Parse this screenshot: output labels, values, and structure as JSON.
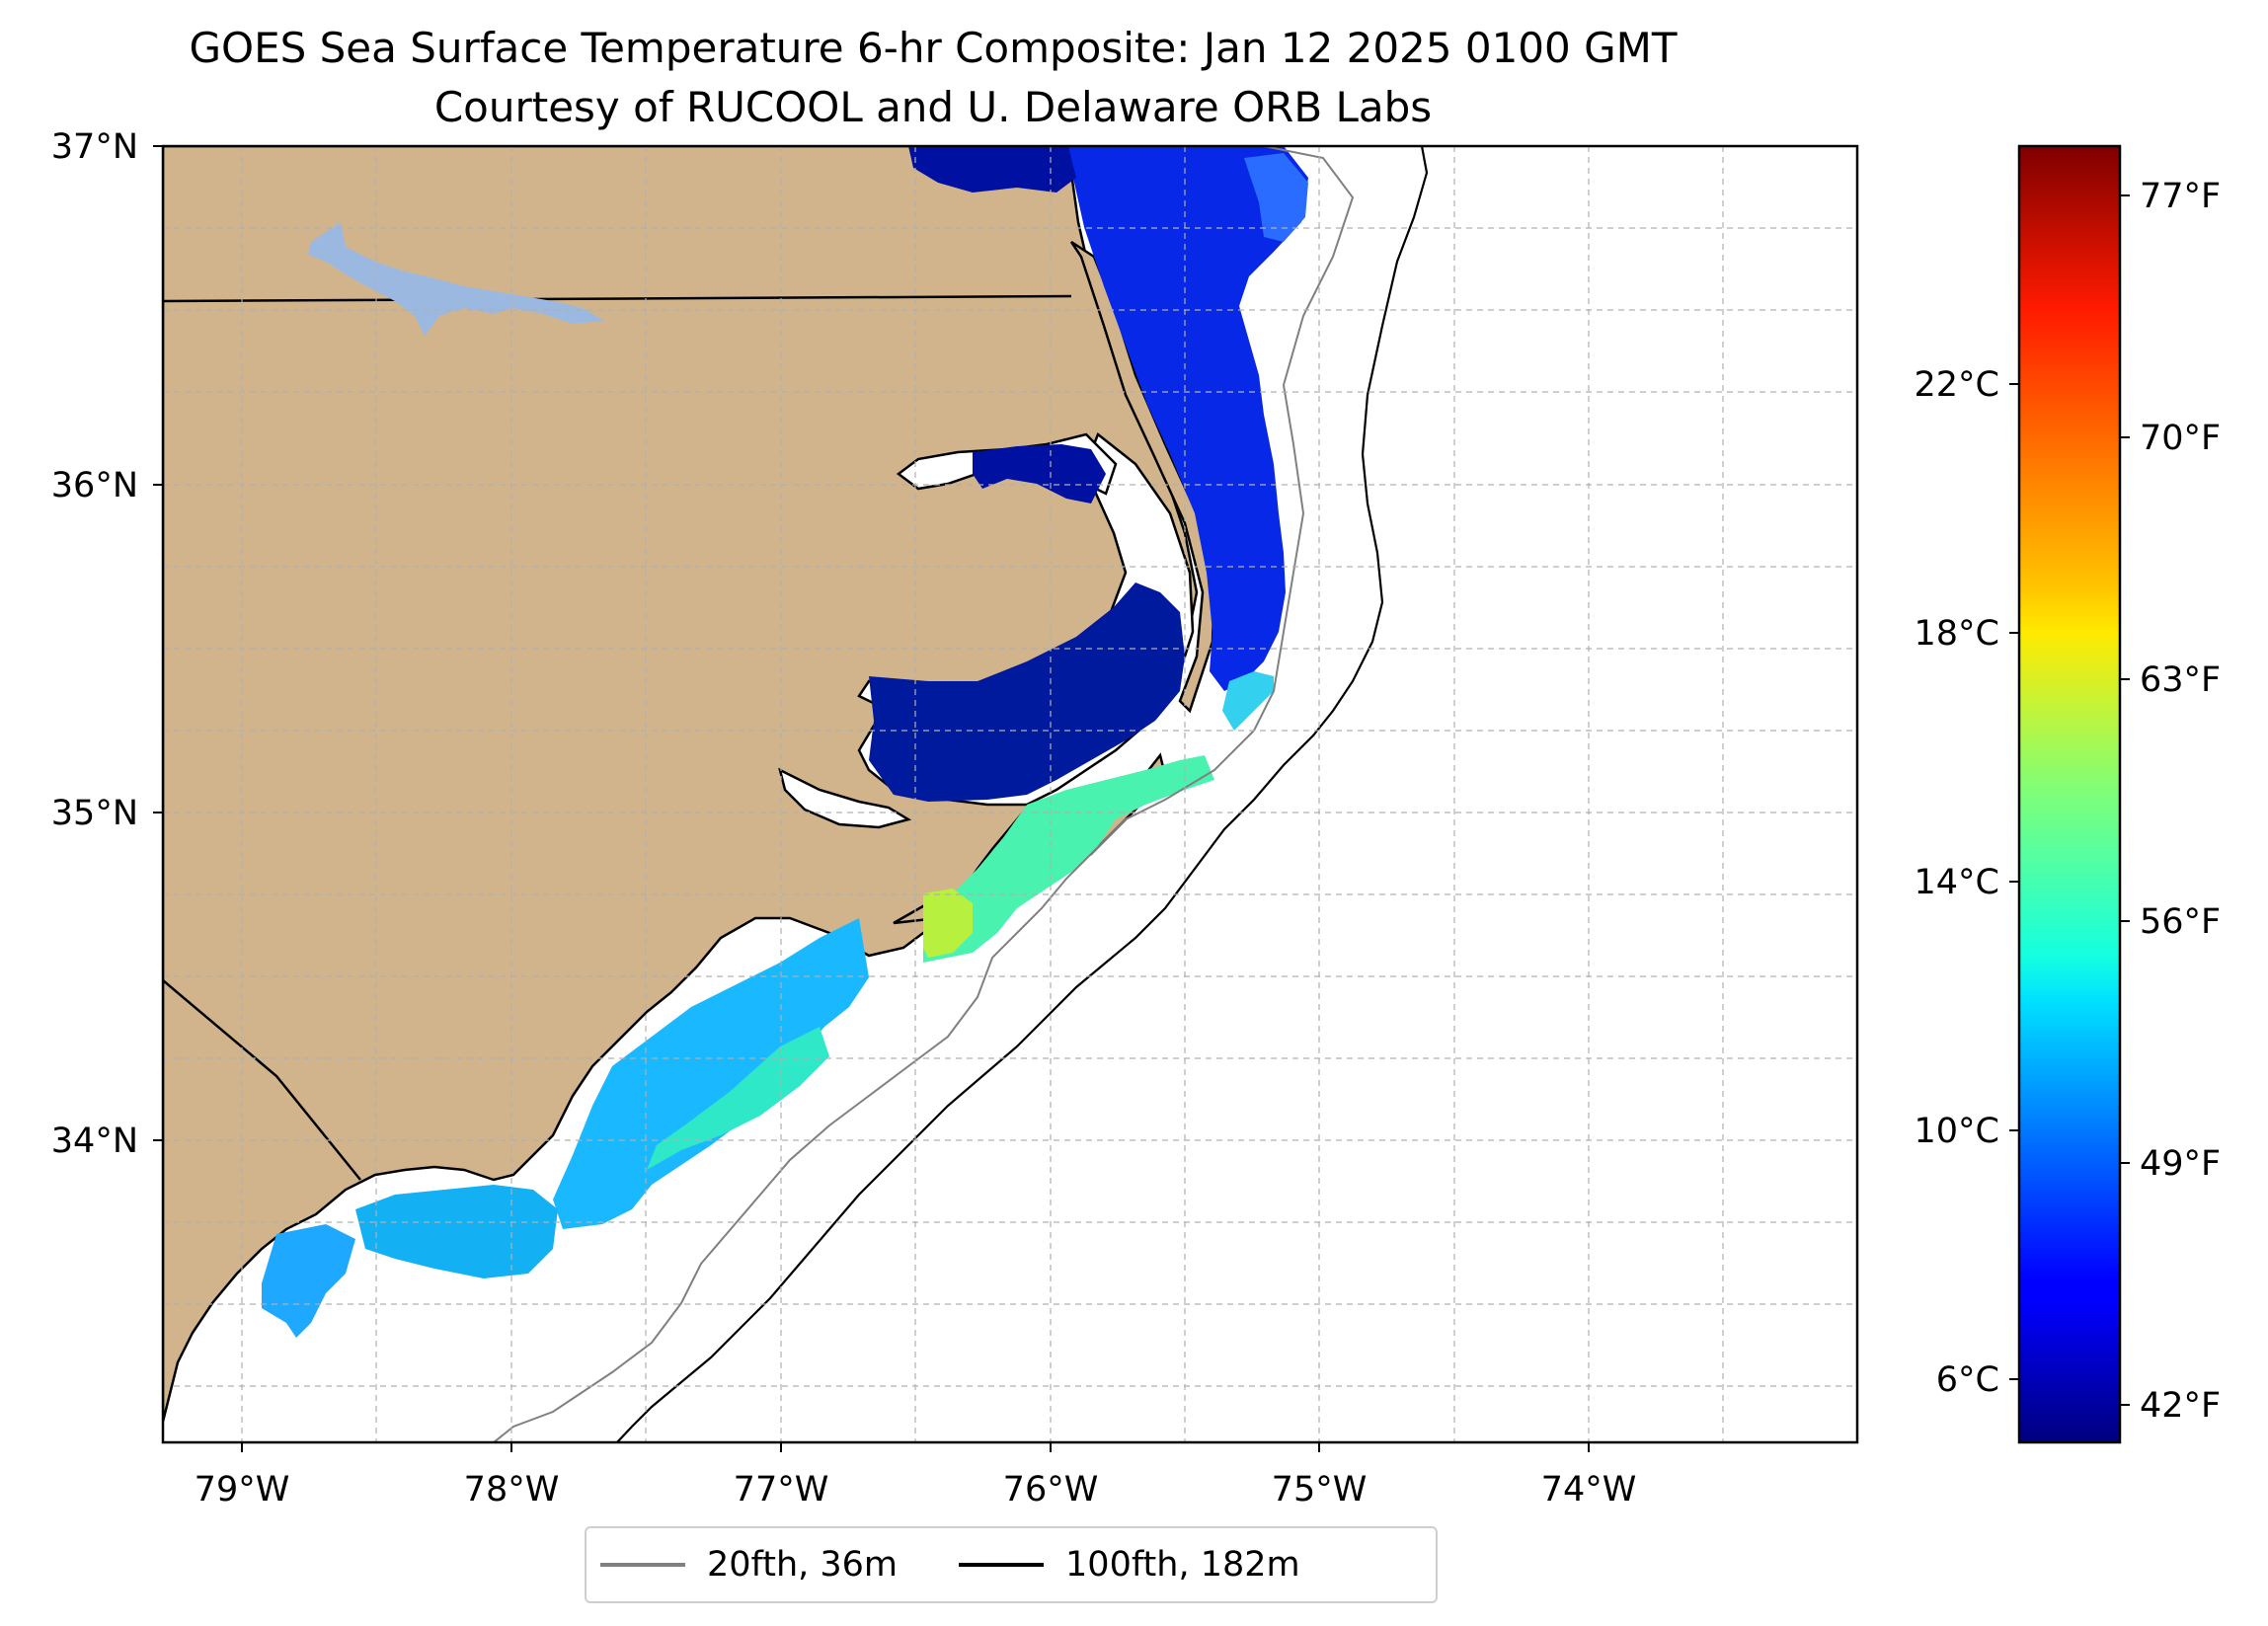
{
  "title": "GOES Sea Surface Temperature 6-hr Composite: Jan 12 2025 0100 GMT",
  "subtitle": "Courtesy of RUCOOL and U. Delaware ORB Labs",
  "map": {
    "extent": {
      "lon_min": -79.3,
      "lon_max": -73.0,
      "lat_min": 33.1,
      "lat_max": 37.0
    },
    "lat_labels": [
      "37°N",
      "36°N",
      "35°N",
      "34°N"
    ],
    "lon_labels": [
      "79°W",
      "78°W",
      "77°W",
      "76°W",
      "75°W",
      "74°W"
    ],
    "gridlines": true,
    "colors": {
      "land": "#d2b48c",
      "lakes": "#9bb9e0",
      "ocean": "#ffffff",
      "coast": "#000000"
    }
  },
  "colorbar": {
    "colormap": "jet",
    "min_c": 5.2,
    "max_c": 26.0,
    "celsius_labels": [
      "22°C",
      "18°C",
      "14°C",
      "10°C",
      "6°C"
    ],
    "fahrenheit_labels": [
      "77°F",
      "70°F",
      "63°F",
      "56°F",
      "49°F",
      "42°F"
    ]
  },
  "legend": {
    "items": [
      {
        "label": "20fth, 36m",
        "color": "#808080"
      },
      {
        "label": "100fth, 182m",
        "color": "#000000"
      }
    ]
  }
}
